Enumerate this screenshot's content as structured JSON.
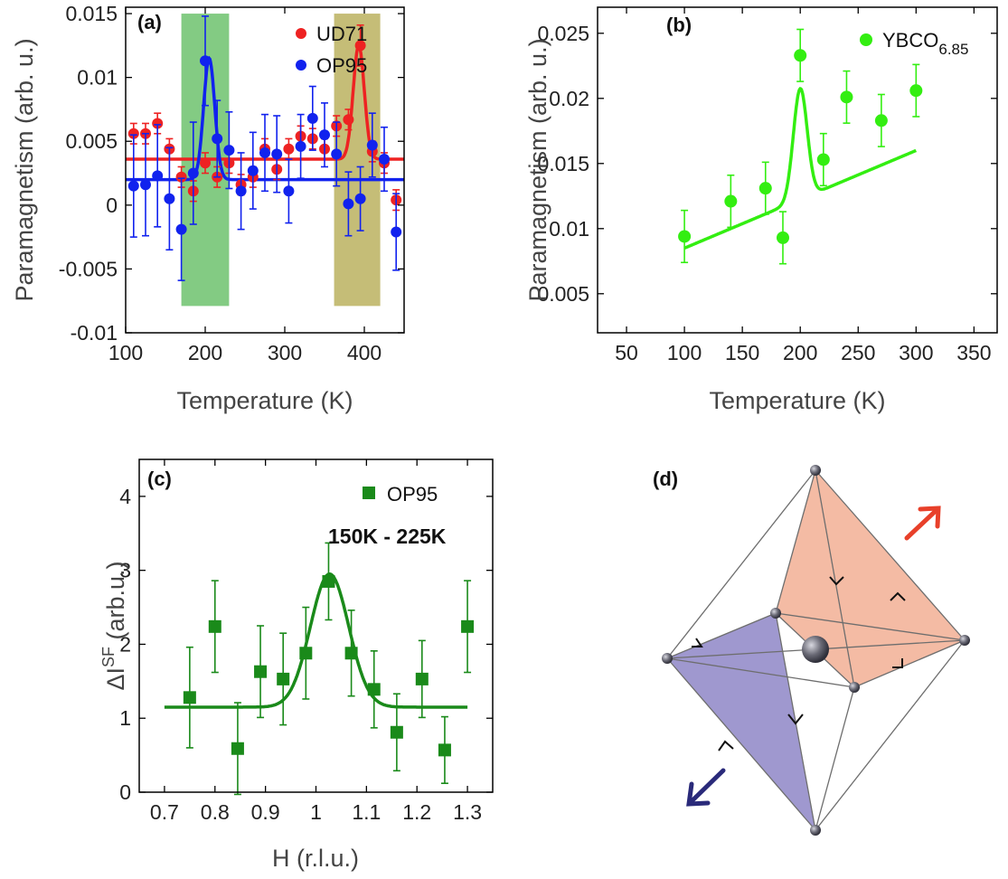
{
  "colors": {
    "red": "#ee2222",
    "blue": "#1122ee",
    "lime": "#33ee11",
    "green": "#1a8a1a",
    "bandGreen": "#7cc87c",
    "bandOlive": "#c2b970",
    "diagPurple": "#9a92cc",
    "diagSalmon": "#f3b49a",
    "arrowRed": "#e8402a",
    "arrowBlue": "#2a2a7a"
  },
  "chart_data": [
    {
      "panel": "(a)",
      "type": "scatter",
      "xlabel": "Temperature (K)",
      "ylabel": "Paramagnetism (arb. u.)",
      "xlim": [
        100,
        450
      ],
      "ylim": [
        -0.01,
        0.0155
      ],
      "xticks": [
        100,
        200,
        300,
        400
      ],
      "xticklabels": [
        "100",
        "200",
        "300",
        "400"
      ],
      "yticks": [
        -0.01,
        -0.005,
        0,
        0.005,
        0.01,
        0.015
      ],
      "yticklabels": [
        "-0.01",
        "-0.005",
        "0",
        "0.005",
        "0.01",
        "0.015"
      ],
      "legend_position": "top",
      "shaded_bands": [
        {
          "x0": 170,
          "x1": 230,
          "y0": -0.0079,
          "y1": 0.015,
          "color_key": "bandGreen"
        },
        {
          "x0": 362,
          "x1": 420,
          "y0": -0.0079,
          "y1": 0.015,
          "color_key": "bandOlive"
        }
      ],
      "series": [
        {
          "name": "UD71",
          "color_key": "red",
          "x": [
            110,
            125,
            140,
            155,
            170,
            185,
            200,
            215,
            230,
            245,
            260,
            275,
            290,
            305,
            320,
            335,
            350,
            365,
            380,
            395,
            410,
            425,
            440
          ],
          "y": [
            0.0056,
            0.0056,
            0.0064,
            0.0044,
            0.0022,
            0.0011,
            0.0033,
            0.0022,
            0.0033,
            0.0016,
            0.0022,
            0.0044,
            0.0028,
            0.0044,
            0.0054,
            0.0052,
            0.0044,
            0.0062,
            0.0067,
            0.0125,
            0.0042,
            0.0033,
            0.0004
          ],
          "err": [
            0.0008,
            0.0008,
            0.0008,
            0.0008,
            0.0008,
            0.0008,
            0.0008,
            0.0008,
            0.0008,
            0.0008,
            0.0008,
            0.0008,
            0.0008,
            0.0008,
            0.0008,
            0.0008,
            0.0008,
            0.0008,
            0.0008,
            0.0016,
            0.0008,
            0.0008,
            0.0008
          ],
          "fit": {
            "baseline": 0.0036,
            "amplitude": 0.0089,
            "center": 393,
            "sigma": 7
          }
        },
        {
          "name": "OP95",
          "color_key": "blue",
          "x": [
            110,
            125,
            140,
            155,
            170,
            185,
            200,
            215,
            230,
            245,
            260,
            275,
            290,
            305,
            320,
            335,
            350,
            365,
            380,
            395,
            410,
            425,
            440
          ],
          "y": [
            0.0015,
            0.0016,
            0.0023,
            0.0005,
            -0.0019,
            0.0025,
            0.0113,
            0.0052,
            0.0043,
            0.0011,
            0.0027,
            0.0041,
            0.004,
            0.0011,
            0.0046,
            0.0068,
            0.0055,
            0.004,
            0.0001,
            0.0005,
            0.0047,
            0.0036,
            -0.0021
          ],
          "err": [
            0.004,
            0.004,
            0.004,
            0.004,
            0.004,
            0.004,
            0.0035,
            0.003,
            0.003,
            0.003,
            0.003,
            0.003,
            0.003,
            0.0025,
            0.0025,
            0.0025,
            0.0025,
            0.0025,
            0.0025,
            0.0025,
            0.0025,
            0.0025,
            0.003
          ],
          "fit": {
            "baseline": 0.002,
            "amplitude": 0.0095,
            "center": 205,
            "sigma": 7
          }
        }
      ]
    },
    {
      "panel": "(b)",
      "type": "scatter",
      "xlabel": "Temperature (K)",
      "ylabel": "Paramagnetism (arb. u.)",
      "xlim": [
        25,
        370
      ],
      "ylim": [
        0.002,
        0.027
      ],
      "xticks": [
        50,
        100,
        150,
        200,
        250,
        300,
        350
      ],
      "xticklabels": [
        "50",
        "100",
        "150",
        "200",
        "250",
        "300",
        "350"
      ],
      "yticks": [
        0.005,
        0.01,
        0.015,
        0.02,
        0.025
      ],
      "yticklabels": [
        "0.005",
        "0.01",
        "0.015",
        "0.02",
        "0.025"
      ],
      "legend_position": "top-right",
      "series": [
        {
          "name": "YBCO",
          "name_sub": "6.85",
          "color_key": "lime",
          "x": [
            100,
            140,
            170,
            185,
            200,
            220,
            240,
            270,
            300
          ],
          "y": [
            0.0094,
            0.0121,
            0.0131,
            0.0093,
            0.0233,
            0.0153,
            0.0201,
            0.0183,
            0.0206
          ],
          "err": [
            0.002,
            0.002,
            0.002,
            0.002,
            0.002,
            0.002,
            0.002,
            0.002,
            0.002
          ],
          "fit": {
            "x0": 100,
            "y0": 0.0085,
            "slope": 3.75e-05,
            "amplitude": 0.0085,
            "center": 200,
            "sigma": 6,
            "x1": 300
          }
        }
      ]
    },
    {
      "panel": "(c)",
      "type": "scatter",
      "xlabel": "H (r.l.u.)",
      "ylabel": "ΔI",
      "ylabel_sup": "SF",
      "ylabel_rest": " (arb.u.)",
      "annotation": "150K - 225K",
      "xlim": [
        0.65,
        1.35
      ],
      "ylim": [
        0,
        4.5
      ],
      "xticks": [
        0.7,
        0.8,
        0.9,
        1,
        1.1,
        1.2,
        1.3
      ],
      "xticklabels": [
        "0.7",
        "0.8",
        "0.9",
        "1",
        "1.1",
        "1.2",
        "1.3"
      ],
      "yticks": [
        0,
        1,
        2,
        3,
        4
      ],
      "yticklabels": [
        "0",
        "1",
        "2",
        "3",
        "4"
      ],
      "legend_position": "top-right",
      "series": [
        {
          "name": "OP95",
          "color_key": "green",
          "x": [
            0.75,
            0.8,
            0.845,
            0.89,
            0.935,
            0.98,
            1.025,
            1.07,
            1.115,
            1.16,
            1.21,
            1.255,
            1.3
          ],
          "y": [
            1.28,
            2.24,
            0.59,
            1.63,
            1.53,
            1.88,
            2.85,
            1.88,
            1.39,
            0.81,
            1.53,
            0.57,
            2.24
          ],
          "err": [
            0.68,
            0.62,
            0.62,
            0.62,
            0.62,
            0.62,
            0.52,
            0.58,
            0.52,
            0.52,
            0.52,
            0.45,
            0.62
          ],
          "fit": {
            "baseline": 1.15,
            "amplitude": 1.8,
            "center": 1.027,
            "sigma": 0.038,
            "x0": 0.7,
            "x1": 1.3
          }
        }
      ]
    }
  ],
  "panel_d": {
    "label": "(d)"
  }
}
